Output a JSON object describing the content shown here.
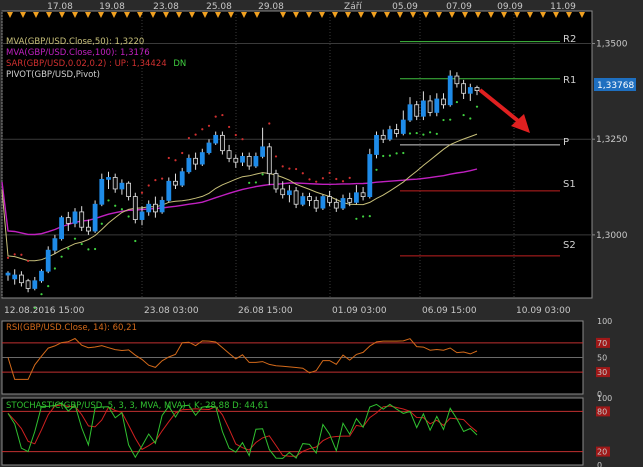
{
  "colors": {
    "background": "#2a2a2a",
    "panel": "#000000",
    "frame": "#8a8a8a",
    "grid": "#3a3a3a",
    "axis_text": "#c8c8c8",
    "candle": "#1e8be8",
    "candle_dark": "#2a2a2a",
    "wick": "#e0e0e0",
    "mva50": "#c8c07a",
    "mva100": "#c020c0",
    "sar_up": "#40d040",
    "sar_down": "#d03030",
    "pivot_r": "#40c040",
    "pivot_s": "#c02020",
    "pivot_p": "#d0d0d0",
    "price_tag": "#1e6fc0",
    "arrow": "#e02020",
    "rsi_line": "#d46a1a",
    "rsi_level": "#c03030",
    "stoch_k": "#30c030",
    "stoch_d": "#d02020",
    "marker": "#f0a020"
  },
  "top_axis": {
    "labels": [
      "17.08",
      "19.08",
      "23.08",
      "25.08",
      "29.08",
      "Září",
      "05.09",
      "07.09",
      "09.09",
      "11.09"
    ]
  },
  "legend": {
    "mva50": "MVA(GBP/USD.Close,50): 1,3220",
    "mva100": "MVA(GBP/USD.Close,100): 1,3176",
    "sar_prefix": "SAR(GBP/USD,0.02,0.2) : UP: 1,34424",
    "sar_dn": "DN",
    "pivot": "PIVOT(GBP/USD,Pivot)"
  },
  "pivot_labels": {
    "r2": "R2",
    "r1": "R1",
    "p": "P",
    "s1": "S1",
    "s2": "S2"
  },
  "price_tag": "1,33768",
  "rsi": {
    "legend": "RSI(GBP/USD.Close, 14): 60,21",
    "scale": [
      "100",
      "70",
      "50",
      "30",
      "0"
    ]
  },
  "stoch": {
    "legend": "STOCHASTIC(GBP/USD, 5, 3, 3, MVA, MVA) : K: 28,88  D: 44,61",
    "scale": [
      "100",
      "80",
      "20",
      "0"
    ]
  },
  "chart_data": {
    "type": "candlestick",
    "title": "",
    "y_axis": {
      "ticks": [
        "1,3500",
        "1,3250",
        "1,3000"
      ],
      "ylim": [
        1.2835,
        1.3585
      ]
    },
    "x_axis": {
      "ticks": [
        "12.08.2016 15:00",
        "23.08 03:00",
        "26.08 15:00",
        "01.09 03:00",
        "06.09 15:00",
        "10.09 03:00"
      ]
    },
    "candles": [
      [
        1.2895,
        1.29,
        1.288,
        1.2905
      ],
      [
        1.2885,
        1.2895,
        1.287,
        1.291
      ],
      [
        1.2895,
        1.2875,
        1.2865,
        1.2905
      ],
      [
        1.288,
        1.286,
        1.285,
        1.2885
      ],
      [
        1.286,
        1.288,
        1.2855,
        1.289
      ],
      [
        1.288,
        1.2905,
        1.2875,
        1.291
      ],
      [
        1.2905,
        1.296,
        1.29,
        1.297
      ],
      [
        1.296,
        1.299,
        1.295,
        1.3
      ],
      [
        1.299,
        1.3045,
        1.2985,
        1.305
      ],
      [
        1.3045,
        1.303,
        1.301,
        1.306
      ],
      [
        1.303,
        1.306,
        1.302,
        1.307
      ],
      [
        1.306,
        1.302,
        1.301,
        1.3075
      ],
      [
        1.302,
        1.301,
        1.3,
        1.304
      ],
      [
        1.301,
        1.308,
        1.3005,
        1.309
      ],
      [
        1.308,
        1.3145,
        1.3075,
        1.316
      ],
      [
        1.3145,
        1.315,
        1.312,
        1.3165
      ],
      [
        1.315,
        1.312,
        1.311,
        1.316
      ],
      [
        1.312,
        1.3135,
        1.3105,
        1.3145
      ],
      [
        1.3135,
        1.31,
        1.309,
        1.314
      ],
      [
        1.31,
        1.304,
        1.303,
        1.311
      ],
      [
        1.304,
        1.306,
        1.3025,
        1.3075
      ],
      [
        1.306,
        1.308,
        1.305,
        1.309
      ],
      [
        1.308,
        1.306,
        1.3045,
        1.31
      ],
      [
        1.306,
        1.309,
        1.3055,
        1.31
      ],
      [
        1.309,
        1.314,
        1.3085,
        1.315
      ],
      [
        1.314,
        1.313,
        1.312,
        1.316
      ],
      [
        1.313,
        1.3165,
        1.3125,
        1.3175
      ],
      [
        1.3165,
        1.32,
        1.316,
        1.321
      ],
      [
        1.32,
        1.3185,
        1.317,
        1.3215
      ],
      [
        1.3185,
        1.3215,
        1.318,
        1.3225
      ],
      [
        1.3215,
        1.324,
        1.321,
        1.325
      ],
      [
        1.324,
        1.326,
        1.3235,
        1.327
      ],
      [
        1.326,
        1.322,
        1.321,
        1.327
      ],
      [
        1.322,
        1.32,
        1.319,
        1.3235
      ],
      [
        1.32,
        1.319,
        1.3175,
        1.321
      ],
      [
        1.319,
        1.3205,
        1.318,
        1.3215
      ],
      [
        1.3205,
        1.318,
        1.317,
        1.3215
      ],
      [
        1.318,
        1.3205,
        1.3175,
        1.3215
      ],
      [
        1.3205,
        1.323,
        1.32,
        1.328
      ],
      [
        1.323,
        1.316,
        1.313,
        1.324
      ],
      [
        1.316,
        1.312,
        1.311,
        1.317
      ],
      [
        1.312,
        1.3105,
        1.3095,
        1.314
      ],
      [
        1.3105,
        1.3115,
        1.3085,
        1.313
      ],
      [
        1.3115,
        1.308,
        1.307,
        1.3125
      ],
      [
        1.308,
        1.31,
        1.3075,
        1.311
      ],
      [
        1.31,
        1.309,
        1.3075,
        1.311
      ],
      [
        1.309,
        1.307,
        1.306,
        1.31
      ],
      [
        1.307,
        1.31,
        1.3065,
        1.3105
      ],
      [
        1.31,
        1.3085,
        1.3075,
        1.3115
      ],
      [
        1.3085,
        1.307,
        1.306,
        1.3095
      ],
      [
        1.307,
        1.3095,
        1.3065,
        1.3105
      ],
      [
        1.3095,
        1.3085,
        1.3075,
        1.311
      ],
      [
        1.3085,
        1.311,
        1.308,
        1.313
      ],
      [
        1.311,
        1.31,
        1.309,
        1.3125
      ],
      [
        1.31,
        1.321,
        1.3095,
        1.3225
      ],
      [
        1.321,
        1.326,
        1.32,
        1.327
      ],
      [
        1.326,
        1.325,
        1.324,
        1.3275
      ],
      [
        1.325,
        1.3275,
        1.3245,
        1.3285
      ],
      [
        1.3275,
        1.3265,
        1.3255,
        1.329
      ],
      [
        1.3265,
        1.33,
        1.326,
        1.3325
      ],
      [
        1.33,
        1.334,
        1.3295,
        1.336
      ],
      [
        1.334,
        1.331,
        1.33,
        1.335
      ],
      [
        1.331,
        1.335,
        1.33,
        1.3375
      ],
      [
        1.335,
        1.332,
        1.331,
        1.3365
      ],
      [
        1.332,
        1.3355,
        1.331,
        1.337
      ],
      [
        1.3355,
        1.334,
        1.333,
        1.337
      ],
      [
        1.334,
        1.3415,
        1.3335,
        1.343
      ],
      [
        1.3415,
        1.3395,
        1.3385,
        1.3425
      ],
      [
        1.3395,
        1.337,
        1.3355,
        1.3405
      ],
      [
        1.337,
        1.3385,
        1.335,
        1.3395
      ],
      [
        1.3385,
        1.3377,
        1.3365,
        1.339
      ]
    ],
    "pivot_levels": {
      "R2": 1.3505,
      "R1": 1.3408,
      "P": 1.3235,
      "S1": 1.3115,
      "S2": 1.2945
    },
    "last_price": 1.33768,
    "mva50_last": 1.322,
    "mva100_last": 1.3176,
    "rsi_last": 60.21,
    "stoch_k_last": 28.88,
    "stoch_d_last": 44.61
  }
}
